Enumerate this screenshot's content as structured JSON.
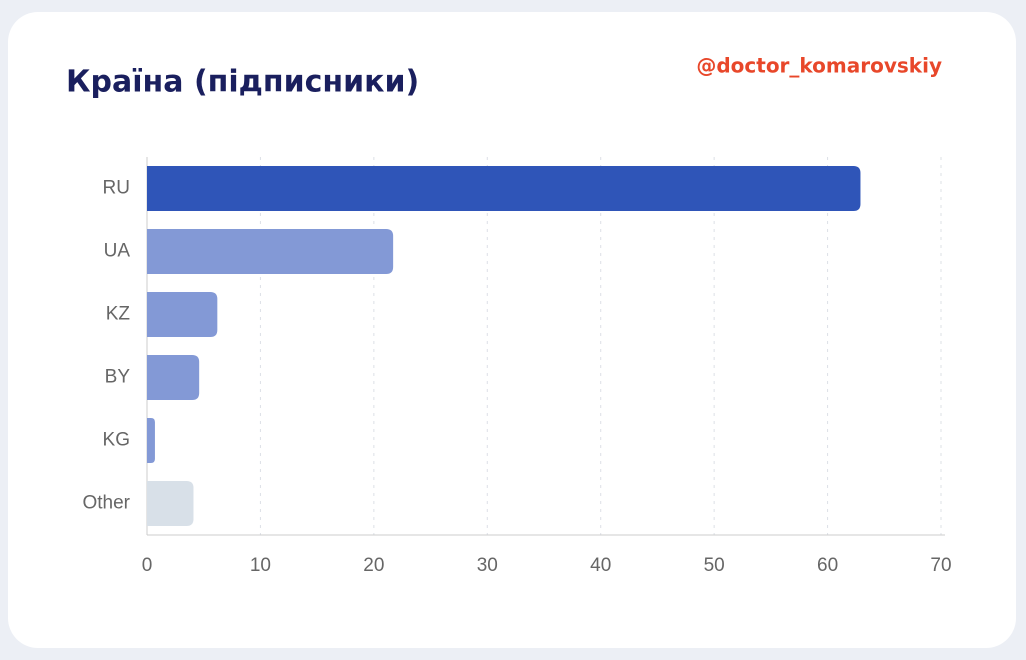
{
  "chart_data": {
    "type": "bar",
    "orientation": "horizontal",
    "title": "Країна (підписники)",
    "annotation": "@doctor_komarovskiy",
    "categories": [
      "RU",
      "UA",
      "KZ",
      "BY",
      "KG",
      "Other"
    ],
    "values": [
      62.9,
      21.7,
      6.2,
      4.6,
      0.7,
      4.1
    ],
    "colors": [
      "#2f55b8",
      "#8399d6",
      "#8399d6",
      "#8399d6",
      "#8399d6",
      "#d8e0e8"
    ],
    "xlim": [
      0,
      70
    ],
    "xticks": [
      0,
      10,
      20,
      30,
      40,
      50,
      60,
      70
    ],
    "grid": true
  }
}
